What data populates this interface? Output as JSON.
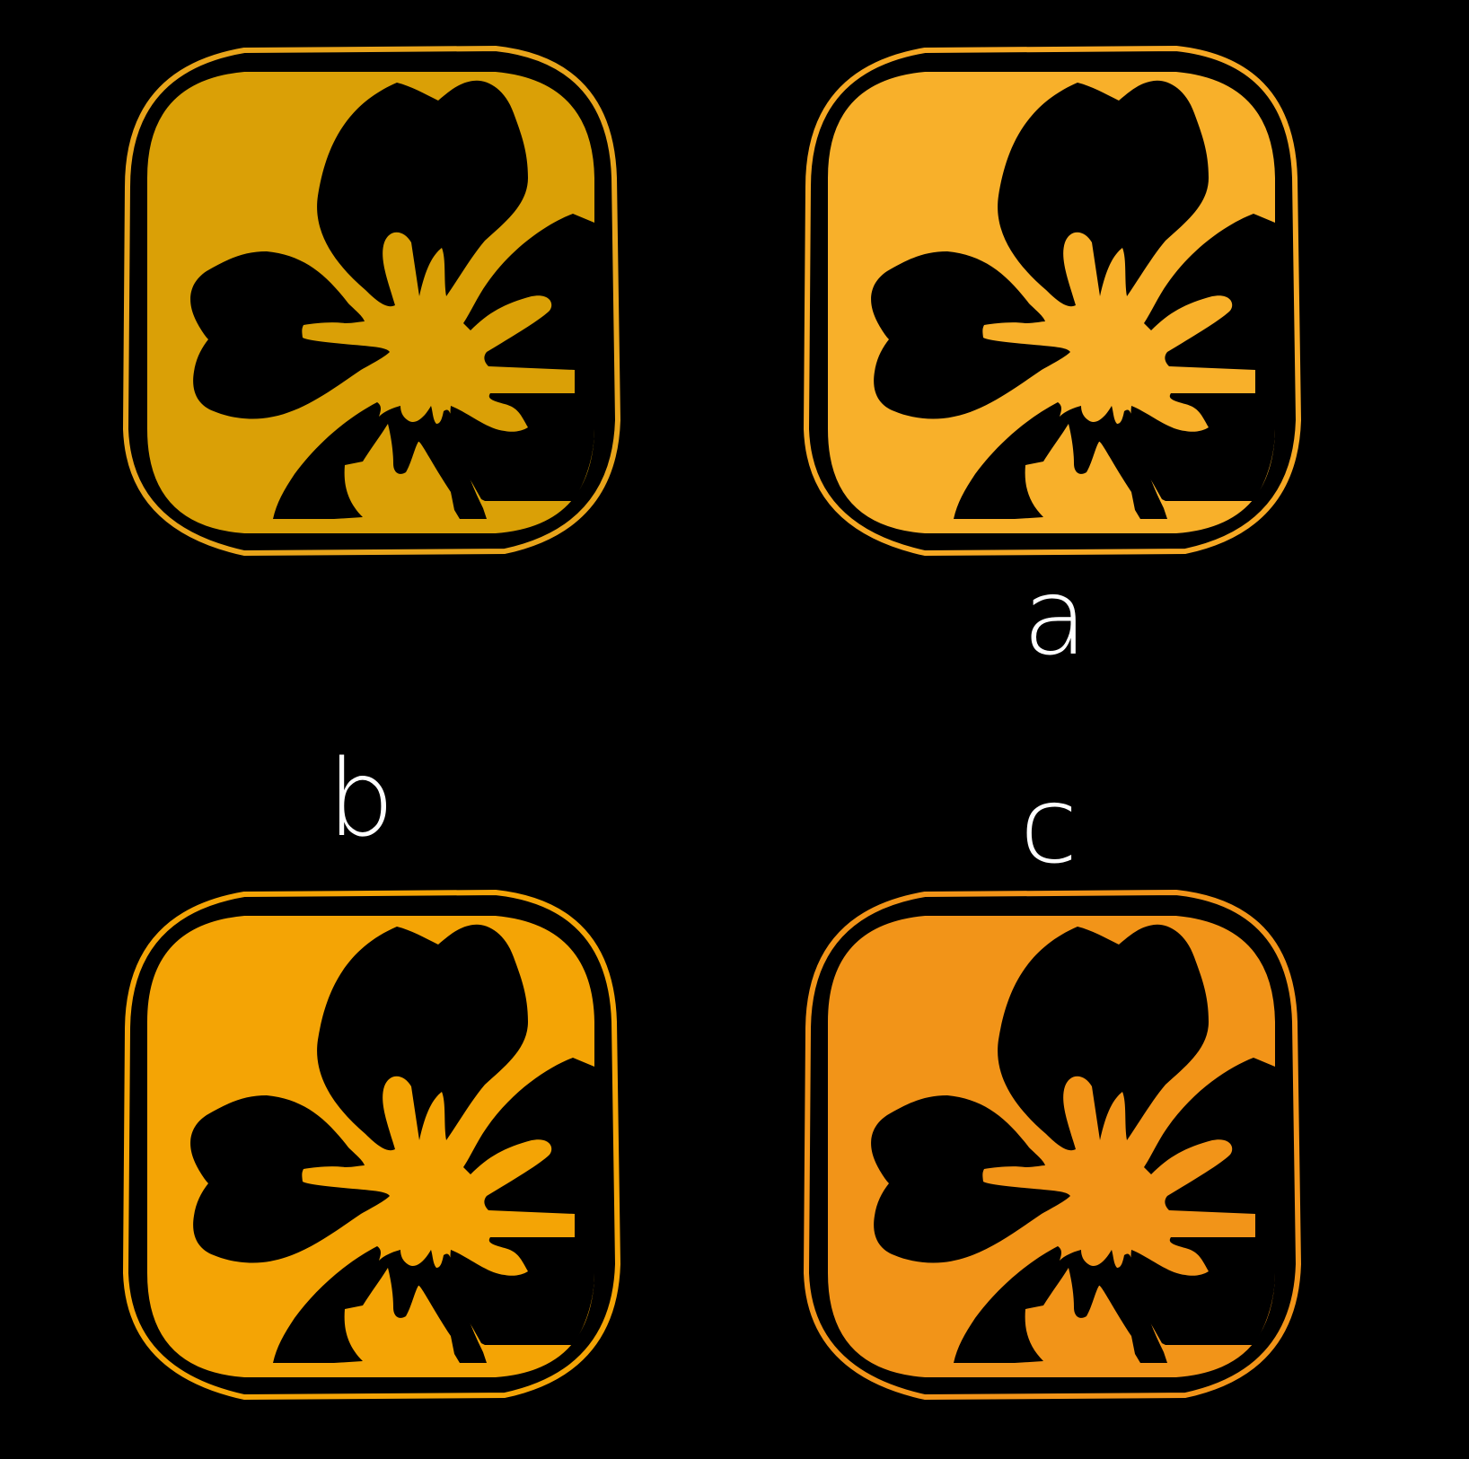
{
  "labels": {
    "a": "a",
    "b": "b",
    "c": "c"
  },
  "icons": [
    {
      "name": "flower-icon",
      "fill": "#DAA006",
      "outline": "#E8A41A"
    },
    {
      "name": "flower-icon",
      "fill": "#F8B02A",
      "outline": "#F6A823"
    },
    {
      "name": "flower-icon",
      "fill": "#F4A405",
      "outline": "#F4A405"
    },
    {
      "name": "flower-icon",
      "fill": "#F29418",
      "outline": "#F29418"
    }
  ],
  "background": "#000000"
}
